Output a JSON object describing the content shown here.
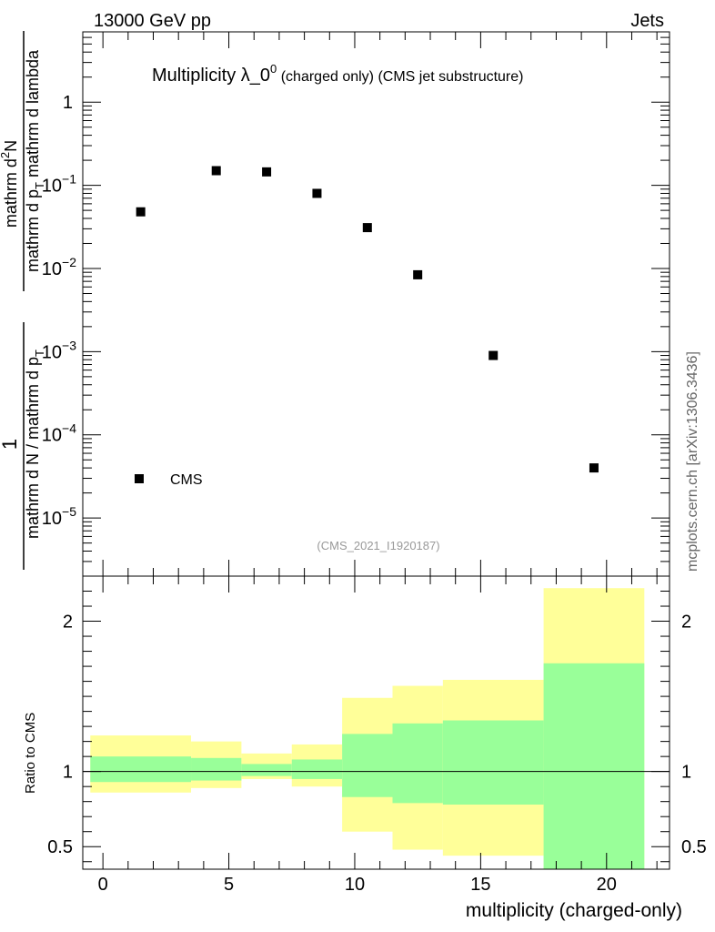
{
  "header": {
    "left_label": "13000 GeV pp",
    "right_label": "Jets",
    "watermark": "mcplots.cern.ch [arXiv:1306.3436]"
  },
  "chart_data": [
    {
      "type": "scatter",
      "title_main": "Multiplicity λ_0",
      "title_sup": "0",
      "title_sub": " (charged only) (CMS jet substructure)",
      "ylabel_numerator_top": "mathrm d",
      "ylabel_numerator_sup": "2",
      "ylabel_numerator_end": "N",
      "ylabel_denominator_top": "mathrm d p",
      "ylabel_denominator_sub": "T",
      "ylabel_denominator_end": " mathrm d lambda",
      "ylabel_prefactor_top": "1",
      "ylabel_prefactor_bottom": "mathrm d N / mathrm d p",
      "ylabel_prefactor_sub": "T",
      "yscale": "log",
      "ylim": [
        2e-06,
        7
      ],
      "xlim": [
        -0.8,
        22.5
      ],
      "y_ticks": [
        {
          "value": 1,
          "base": "1",
          "exp": ""
        },
        {
          "value": 0.1,
          "base": "10",
          "exp": "−1"
        },
        {
          "value": 0.01,
          "base": "10",
          "exp": "−2"
        },
        {
          "value": 0.001,
          "base": "10",
          "exp": "−3"
        },
        {
          "value": 0.0001,
          "base": "10",
          "exp": "−4"
        },
        {
          "value": 1e-05,
          "base": "10",
          "exp": "−5"
        }
      ],
      "series": [
        {
          "name": "CMS",
          "x": [
            1.5,
            4.5,
            6.5,
            8.5,
            10.5,
            12.5,
            15.5,
            19.5
          ],
          "y": [
            0.048,
            0.15,
            0.145,
            0.08,
            0.031,
            0.0084,
            0.0009,
            4e-05
          ]
        }
      ],
      "legend_placement": "bottom-left",
      "analysis_tag": "(CMS_2021_I1920187)"
    },
    {
      "type": "area",
      "ylabel": "Ratio to CMS",
      "xlabel": "multiplicity (charged-only)",
      "ylim": [
        0.35,
        2.3
      ],
      "xlim": [
        -0.8,
        22.5
      ],
      "x_ticks": [
        0,
        5,
        10,
        15,
        20
      ],
      "y_ticks": [
        {
          "value": 0.5,
          "label": "0.5"
        },
        {
          "value": 1,
          "label": "1"
        },
        {
          "value": 2,
          "label": "2"
        }
      ],
      "reference_line": 1,
      "bins": [
        {
          "lo": -0.5,
          "hi": 3.5,
          "inner": [
            0.93,
            1.1
          ],
          "outer": [
            0.86,
            1.24
          ]
        },
        {
          "lo": 3.5,
          "hi": 5.5,
          "inner": [
            0.94,
            1.09
          ],
          "outer": [
            0.89,
            1.2
          ]
        },
        {
          "lo": 5.5,
          "hi": 7.5,
          "inner": [
            0.97,
            1.05
          ],
          "outer": [
            0.95,
            1.12
          ]
        },
        {
          "lo": 7.5,
          "hi": 9.5,
          "inner": [
            0.95,
            1.08
          ],
          "outer": [
            0.9,
            1.18
          ]
        },
        {
          "lo": 9.5,
          "hi": 11.5,
          "inner": [
            0.83,
            1.25
          ],
          "outer": [
            0.6,
            1.49
          ]
        },
        {
          "lo": 11.5,
          "hi": 13.5,
          "inner": [
            0.79,
            1.32
          ],
          "outer": [
            0.48,
            1.57
          ]
        },
        {
          "lo": 13.5,
          "hi": 17.5,
          "inner": [
            0.78,
            1.34
          ],
          "outer": [
            0.44,
            1.61
          ]
        },
        {
          "lo": 17.5,
          "hi": 21.5,
          "inner": [
            0.35,
            1.72
          ],
          "outer": [
            0.35,
            2.22
          ]
        }
      ],
      "colors": {
        "inner": "#99ff99",
        "outer": "#ffff99"
      }
    }
  ]
}
